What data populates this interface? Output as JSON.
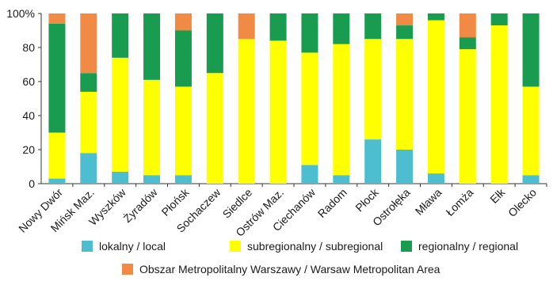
{
  "chart_data": {
    "type": "bar",
    "stacked": true,
    "ylim": [
      0,
      100
    ],
    "grid": false,
    "legend_position": "bottom",
    "y_ticks": [
      "0",
      "20",
      "40",
      "60",
      "80",
      "100%"
    ],
    "y_tick_values": [
      0,
      20,
      40,
      60,
      80,
      100
    ],
    "categories": [
      "Nowy Dwór",
      "Mińsk Maz.",
      "Wyszków",
      "Żyradów",
      "Płońsk",
      "Sochaczew",
      "Siedlce",
      "Ostrów Maz.",
      "Ciechanów",
      "Radom",
      "Płock",
      "Ostrołęka",
      "Mława",
      "Łomża",
      "Ełk",
      "Olecko"
    ],
    "series": [
      {
        "name": "lokalny / local",
        "color": "#4dbdd0",
        "values": [
          3,
          18,
          7,
          5,
          5,
          0,
          0,
          0,
          11,
          5,
          26,
          20,
          6,
          0,
          0,
          5
        ]
      },
      {
        "name": "subregionalny / subregional",
        "color": "#ffff00",
        "values": [
          27,
          36,
          67,
          56,
          52,
          65,
          85,
          84,
          66,
          77,
          59,
          65,
          90,
          79,
          93,
          52
        ]
      },
      {
        "name": "regionalny / regional",
        "color": "#199b50",
        "values": [
          64,
          11,
          26,
          39,
          33,
          35,
          0,
          16,
          23,
          18,
          15,
          8,
          4,
          7,
          7,
          43
        ]
      },
      {
        "name": "Obszar Metropolitalny Warszawy / Warsaw Metropolitan Area",
        "color": "#f08a45",
        "values": [
          6,
          35,
          0,
          0,
          10,
          0,
          15,
          0,
          0,
          0,
          0,
          7,
          0,
          14,
          0,
          0
        ]
      }
    ]
  }
}
